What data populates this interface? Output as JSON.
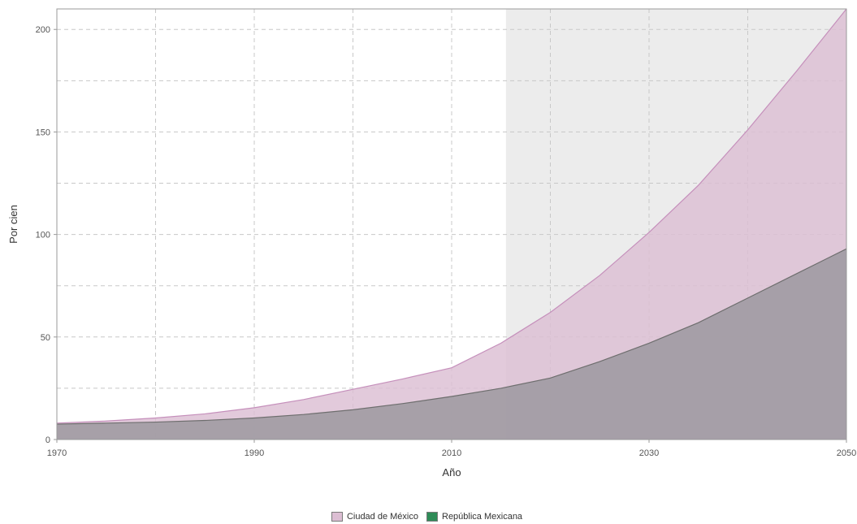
{
  "chart_data": {
    "type": "area",
    "xlabel": "Año",
    "ylabel": "Por cien",
    "xlim": [
      1970,
      2050
    ],
    "ylim": [
      0,
      210
    ],
    "x_ticks": [
      1970,
      1990,
      2010,
      2030,
      2050
    ],
    "y_ticks": [
      0,
      50,
      100,
      150,
      200
    ],
    "grid": true,
    "legend_position": "bottom",
    "projection_shading_start": 2015.5,
    "x": [
      1970,
      1975,
      1980,
      1985,
      1990,
      1995,
      2000,
      2005,
      2010,
      2015,
      2020,
      2025,
      2030,
      2035,
      2040,
      2045,
      2050
    ],
    "series": [
      {
        "name": "Ciudad de México",
        "color": "#dcbed3",
        "stroke": "#c58fbb",
        "values": [
          8,
          9,
          10.5,
          12.5,
          15.5,
          19.5,
          24.5,
          29.5,
          35,
          47,
          62,
          80,
          101,
          124,
          151,
          180,
          210
        ]
      },
      {
        "name": "República Mexicana",
        "color": "#9e9aa1",
        "stroke": "#6e6e6e",
        "legend_color": "#2e8b57",
        "values": [
          7.5,
          8,
          8.5,
          9.3,
          10.5,
          12.2,
          14.5,
          17.5,
          21,
          25,
          30,
          38,
          47,
          57,
          69,
          81,
          93
        ]
      }
    ]
  }
}
